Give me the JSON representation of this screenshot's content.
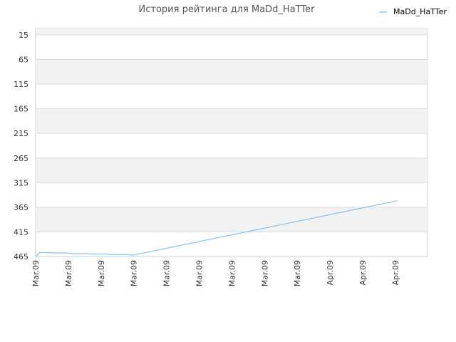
{
  "chart_data": {
    "type": "line",
    "title": "История рейтинга для MaDd_HaTTer",
    "xlabel": "",
    "ylabel": "",
    "y_axis_inverted": true,
    "ylim": [
      15,
      465
    ],
    "yticks": [
      15,
      65,
      115,
      165,
      215,
      265,
      315,
      365,
      415,
      465
    ],
    "x_tick_labels": [
      "Mar.09",
      "Mar.09",
      "Mar.09",
      "Mar.09",
      "Mar.09",
      "Mar.09",
      "Mar.09",
      "Mar.09",
      "Mar.09",
      "Apr.09",
      "Apr.09",
      "Apr.09"
    ],
    "grid": "alternating horizontal bands",
    "legend_position": "top-right",
    "series": [
      {
        "name": "MaDd_HaTTer",
        "color": "#8ec6ee",
        "x": [
          0,
          0.12,
          0.25,
          1.0,
          1.05,
          1.6,
          1.65,
          2.2,
          2.25,
          2.8,
          2.85,
          3.0,
          11.05
        ],
        "y": [
          465,
          457,
          457,
          458,
          459,
          459,
          460,
          460,
          461,
          461,
          462,
          462,
          352
        ]
      }
    ]
  },
  "colors": {
    "band": "#f2f2f2",
    "grid": "#dddddd",
    "axis": "#cccccc",
    "line": "#8ec6ee"
  }
}
